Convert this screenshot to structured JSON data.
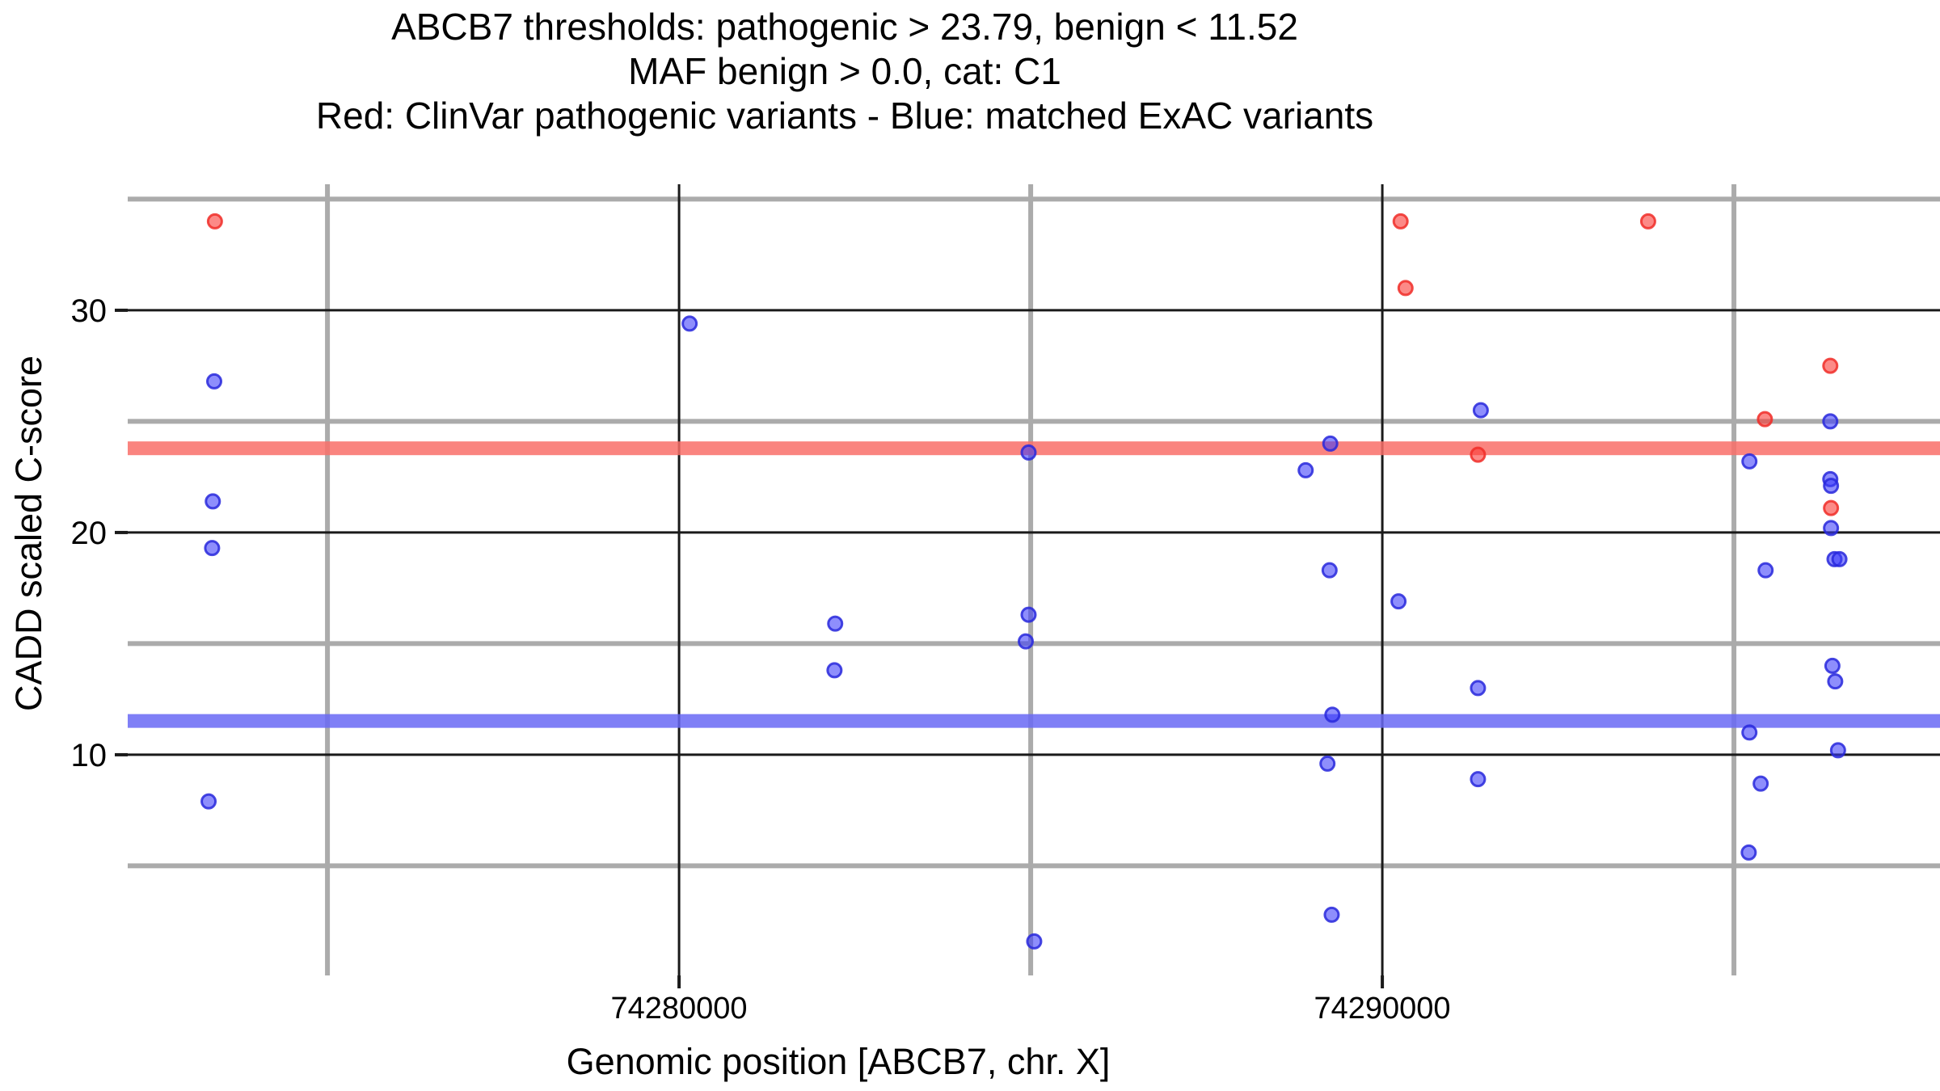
{
  "figure": {
    "title_lines": [
      "ABCB7 thresholds: pathogenic > 23.79, benign < 11.52",
      "MAF benign > 0.0, cat: C1",
      "Red: ClinVar pathogenic variants - Blue: matched ExAC variants"
    ],
    "xlabel": "Genomic position [ABCB7, chr. X]",
    "ylabel": "CADD scaled C-score"
  },
  "chart_data": {
    "type": "scatter",
    "title": "ABCB7 thresholds: pathogenic > 23.79, benign < 11.52 / MAF benign > 0.0, cat: C1",
    "xlabel": "Genomic position [ABCB7, chr. X]",
    "ylabel": "CADD scaled C-score",
    "xlim": [
      74272160,
      74297930
    ],
    "ylim": [
      0.07,
      35.67
    ],
    "grid": {
      "major_color": "#1a1a1a",
      "minor_color": "#ababab",
      "major_width": 3,
      "minor_width": 6,
      "tick_color": "#1a1a1a",
      "tick_len": 16
    },
    "x_ticks": [
      {
        "value": 74280000,
        "label": "74280000"
      },
      {
        "value": 74290000,
        "label": "74290000"
      }
    ],
    "y_ticks": [
      {
        "value": 30,
        "label": "30"
      },
      {
        "value": 20,
        "label": "20"
      },
      {
        "value": 10,
        "label": "10"
      }
    ],
    "x_minor": [
      74275000,
      74285000,
      74295000
    ],
    "y_minor": [
      5,
      15,
      25,
      35
    ],
    "thresholds": {
      "pathogenic": {
        "value": 23.79,
        "color": "rgba(249,110,104,0.85)",
        "height": 17
      },
      "benign": {
        "value": 11.52,
        "color": "rgba(105,105,245,0.85)",
        "height": 17
      }
    },
    "series": [
      {
        "name": "ClinVar pathogenic variants",
        "fill": "rgba(250,60,55,0.60)",
        "stroke": "rgba(240,45,40,0.85)",
        "points": [
          [
            74273400,
            34.0
          ],
          [
            74290260,
            34.0
          ],
          [
            74290330,
            31.0
          ],
          [
            74291360,
            23.5
          ],
          [
            74293780,
            34.0
          ],
          [
            74295440,
            25.1
          ],
          [
            74296370,
            27.5
          ],
          [
            74296380,
            21.1
          ]
        ]
      },
      {
        "name": "matched ExAC variants",
        "fill": "rgba(60,60,250,0.58)",
        "stroke": "rgba(40,40,220,0.85)",
        "points": [
          [
            74273390,
            26.8
          ],
          [
            74273370,
            21.4
          ],
          [
            74273360,
            19.3
          ],
          [
            74273310,
            7.9
          ],
          [
            74280150,
            29.4
          ],
          [
            74282220,
            15.9
          ],
          [
            74282210,
            13.8
          ],
          [
            74284970,
            23.6
          ],
          [
            74284970,
            16.3
          ],
          [
            74284930,
            15.1
          ],
          [
            74285050,
            1.6
          ],
          [
            74288910,
            22.8
          ],
          [
            74289260,
            24.0
          ],
          [
            74289250,
            18.3
          ],
          [
            74289290,
            11.8
          ],
          [
            74289220,
            9.6
          ],
          [
            74289280,
            2.8
          ],
          [
            74290230,
            16.9
          ],
          [
            74291400,
            25.5
          ],
          [
            74291360,
            13.0
          ],
          [
            74291360,
            8.9
          ],
          [
            74295220,
            23.2
          ],
          [
            74295450,
            18.3
          ],
          [
            74295220,
            11.0
          ],
          [
            74295380,
            8.7
          ],
          [
            74295210,
            5.6
          ],
          [
            74296370,
            25.0
          ],
          [
            74296370,
            22.4
          ],
          [
            74296380,
            22.1
          ],
          [
            74296380,
            20.2
          ],
          [
            74296430,
            18.8
          ],
          [
            74296500,
            18.8
          ],
          [
            74296400,
            14.0
          ],
          [
            74296440,
            13.3
          ],
          [
            74296480,
            10.2
          ]
        ]
      }
    ],
    "point_radius": 8.5,
    "point_stroke_width": 3
  }
}
